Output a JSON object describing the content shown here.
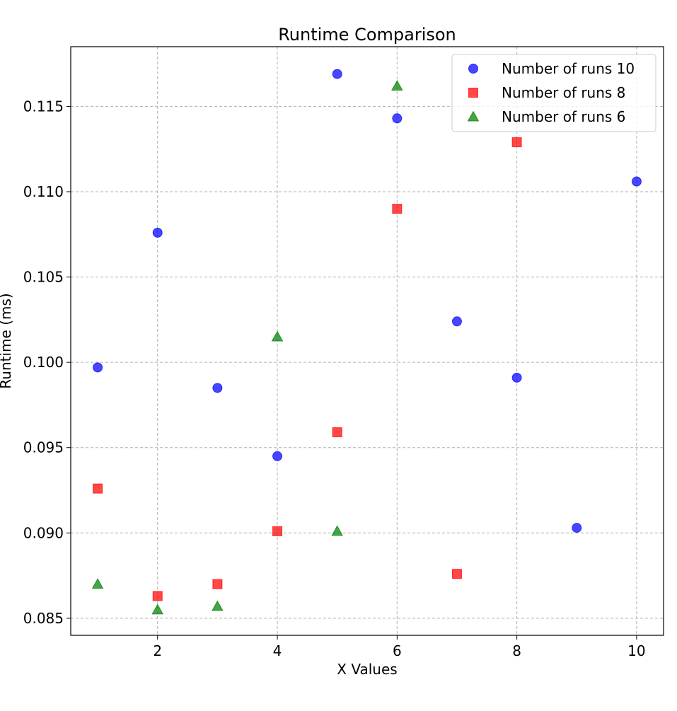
{
  "chart_data": {
    "type": "scatter",
    "title": "Runtime Comparison",
    "xlabel": "X Values",
    "ylabel": "Runtime (ms)",
    "xlim": [
      0.55,
      10.45
    ],
    "ylim": [
      0.084,
      0.1185
    ],
    "xticks": [
      2,
      4,
      6,
      8,
      10
    ],
    "yticks": [
      0.085,
      0.09,
      0.095,
      0.1,
      0.105,
      0.11,
      0.115
    ],
    "xtick_labels": [
      "2",
      "4",
      "6",
      "8",
      "10"
    ],
    "ytick_labels": [
      "0.085",
      "0.090",
      "0.095",
      "0.100",
      "0.105",
      "0.110",
      "0.115"
    ],
    "grid": true,
    "legend_position": "top-right",
    "series": [
      {
        "name": "Number of runs 10",
        "marker": "circle",
        "color": "#0000ff",
        "points": [
          [
            1,
            0.0997
          ],
          [
            2,
            0.1076
          ],
          [
            3,
            0.0985
          ],
          [
            4,
            0.0945
          ],
          [
            5,
            0.1169
          ],
          [
            6,
            0.1143
          ],
          [
            7,
            0.1024
          ],
          [
            8,
            0.0991
          ],
          [
            9,
            0.0903
          ],
          [
            10,
            0.1106
          ]
        ]
      },
      {
        "name": "Number of runs 8",
        "marker": "square",
        "color": "#ff0000",
        "points": [
          [
            1,
            0.0926
          ],
          [
            2,
            0.0863
          ],
          [
            3,
            0.087
          ],
          [
            4,
            0.0901
          ],
          [
            5,
            0.0959
          ],
          [
            6,
            0.109
          ],
          [
            7,
            0.0876
          ],
          [
            8,
            0.1129
          ]
        ]
      },
      {
        "name": "Number of runs 6",
        "marker": "triangle",
        "color": "#008000",
        "points": [
          [
            1,
            0.087
          ],
          [
            2,
            0.0855
          ],
          [
            3,
            0.0857
          ],
          [
            4,
            0.1015
          ],
          [
            5,
            0.0901
          ],
          [
            6,
            0.1162
          ]
        ]
      }
    ]
  }
}
